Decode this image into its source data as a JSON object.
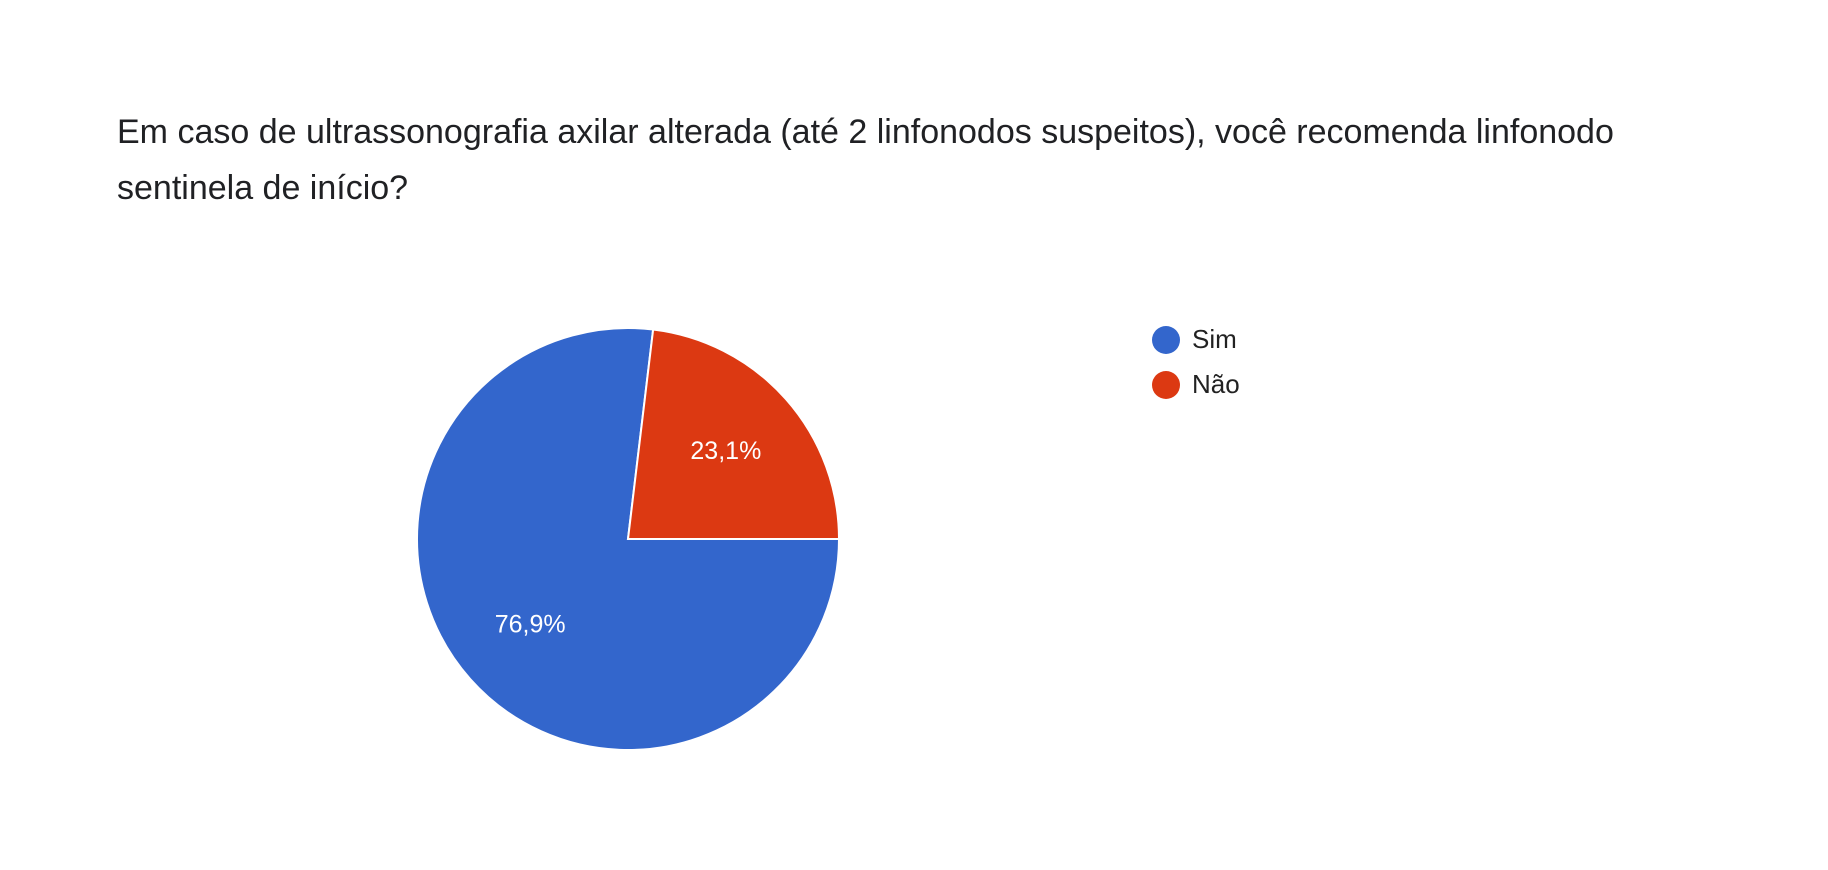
{
  "chart_data": {
    "type": "pie",
    "title": "Em caso de ultrassonografia axilar alterada (até 2 linfonodos suspeitos), você recomenda linfonodo sentinela de início?",
    "categories": [
      "Sim",
      "Não"
    ],
    "values": [
      76.9,
      23.1
    ],
    "value_labels": [
      "76,9%",
      "23,1%"
    ],
    "colors": [
      "#3366cc",
      "#dc3912"
    ],
    "legend": "right"
  }
}
